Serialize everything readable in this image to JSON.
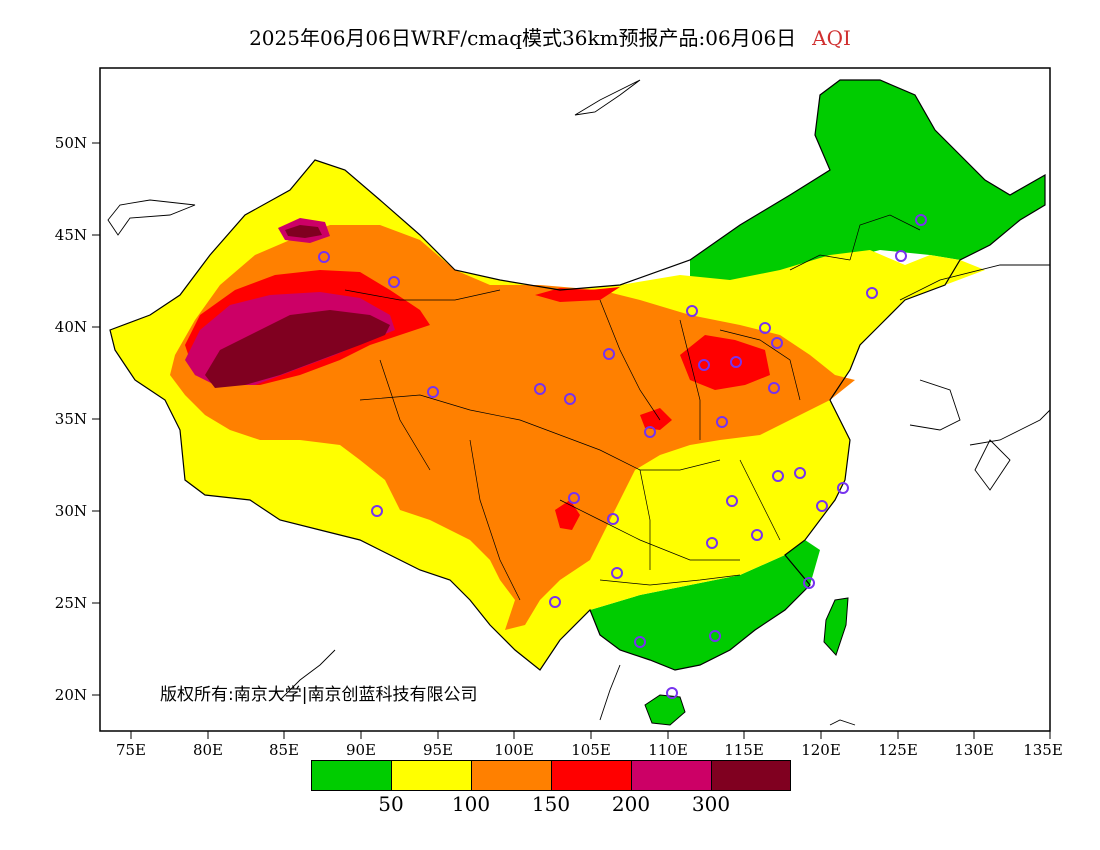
{
  "title": {
    "main": "2025年06月06日WRF/cmaq模式36km预报产品:06月06日",
    "variable": "AQI",
    "variable_color": "#d03030"
  },
  "axes": {
    "lat_labels": [
      "50N",
      "45N",
      "40N",
      "35N",
      "30N",
      "25N",
      "20N"
    ],
    "lon_labels": [
      "75E",
      "80E",
      "85E",
      "90E",
      "95E",
      "100E",
      "105E",
      "110E",
      "115E",
      "120E",
      "125E",
      "130E",
      "135E"
    ]
  },
  "copyright": "版权所有:南京大学|南京创蓝科技有限公司",
  "legend": {
    "colors": [
      "#00cc00",
      "#ffff00",
      "#ff8000",
      "#ff0000",
      "#cc0066",
      "#800020"
    ],
    "labels": [
      "50",
      "100",
      "150",
      "200",
      "300"
    ]
  },
  "stations": {
    "marker_color": "#7733ee",
    "count": 33
  }
}
